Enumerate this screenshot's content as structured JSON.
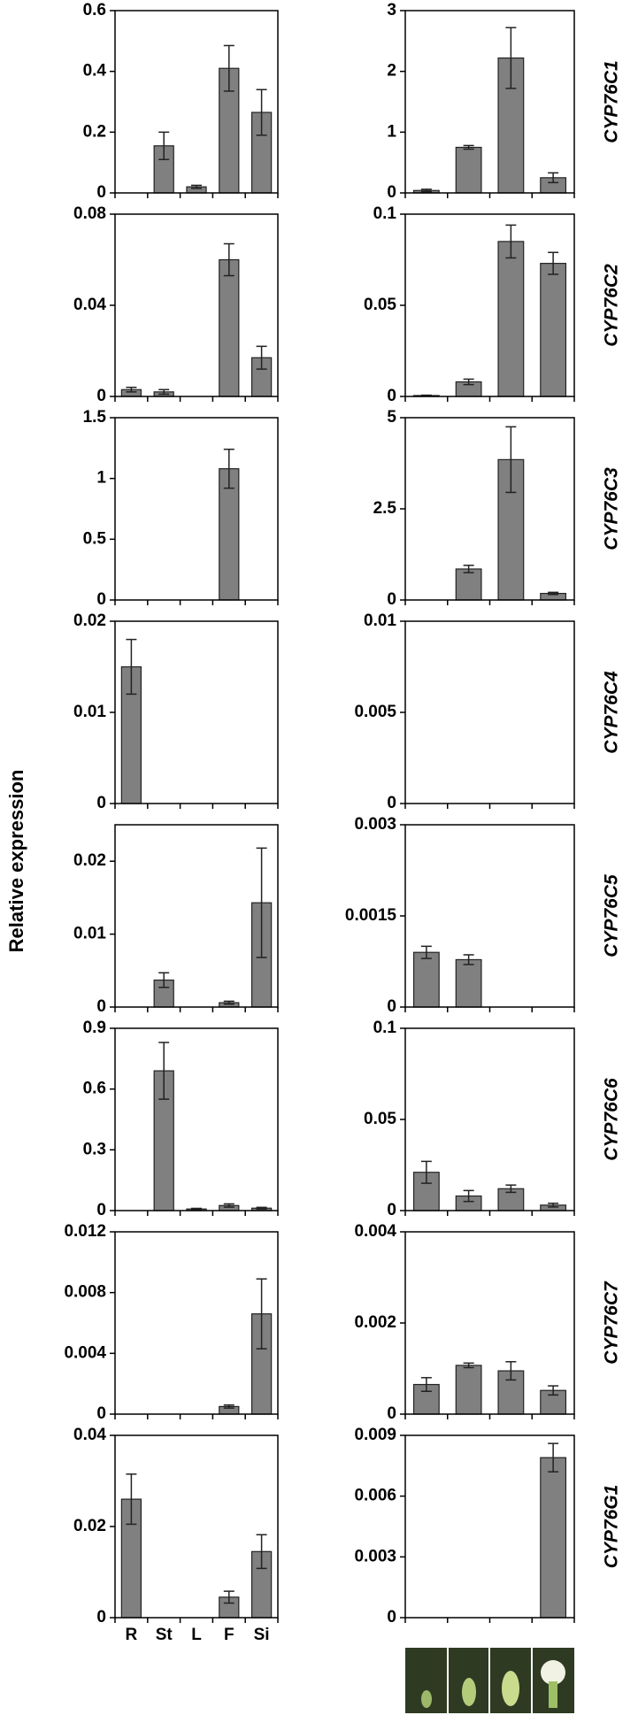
{
  "y_axis_label": "Relative expression",
  "chart_data": [
    {
      "type": "bar",
      "values": [
        0,
        0.155,
        0.02,
        0.41,
        0.265
      ],
      "errors": [
        0,
        0.045,
        0.005,
        0.075,
        0.075
      ],
      "ylim": [
        0,
        0.6
      ],
      "yticks": [
        0,
        0.2,
        0.4,
        0.6
      ],
      "color": "#808080"
    },
    {
      "type": "bar",
      "title": "CYP76C1",
      "values": [
        0.04,
        0.75,
        2.22,
        0.25
      ],
      "errors": [
        0.02,
        0.03,
        0.5,
        0.08
      ],
      "ylim": [
        0,
        3
      ],
      "yticks": [
        0,
        1,
        2,
        3
      ],
      "color": "#808080"
    },
    {
      "type": "bar",
      "values": [
        0.003,
        0.002,
        0,
        0.06,
        0.017
      ],
      "errors": [
        0.001,
        0.001,
        0,
        0.007,
        0.005
      ],
      "ylim": [
        0,
        0.08
      ],
      "yticks": [
        0,
        0.04,
        0.08
      ],
      "color": "#808080"
    },
    {
      "type": "bar",
      "title": "CYP76C2",
      "values": [
        0.0005,
        0.008,
        0.085,
        0.073
      ],
      "errors": [
        0.0002,
        0.0015,
        0.009,
        0.006
      ],
      "ylim": [
        0,
        0.1
      ],
      "yticks": [
        0,
        0.05,
        0.1
      ],
      "color": "#808080"
    },
    {
      "type": "bar",
      "values": [
        0,
        0,
        0,
        1.08,
        0
      ],
      "errors": [
        0,
        0,
        0,
        0.16,
        0
      ],
      "ylim": [
        0,
        1.5
      ],
      "yticks": [
        0,
        0.5,
        1,
        1.5
      ],
      "color": "#808080"
    },
    {
      "type": "bar",
      "title": "CYP76C3",
      "values": [
        0,
        0.85,
        3.85,
        0.18
      ],
      "errors": [
        0,
        0.1,
        0.9,
        0.03
      ],
      "ylim": [
        0,
        5
      ],
      "yticks": [
        0,
        2.5,
        5
      ],
      "color": "#808080"
    },
    {
      "type": "bar",
      "values": [
        0.015,
        0,
        0,
        0,
        0
      ],
      "errors": [
        0.003,
        0,
        0,
        0,
        0
      ],
      "ylim": [
        0,
        0.02
      ],
      "yticks": [
        0,
        0.01,
        0.02
      ],
      "color": "#808080"
    },
    {
      "type": "bar",
      "title": "CYP76C4",
      "values": [
        0,
        0,
        0,
        0
      ],
      "errors": [
        0,
        0,
        0,
        0
      ],
      "ylim": [
        0,
        0.01
      ],
      "yticks": [
        0,
        0.005,
        0.01
      ],
      "color": "#808080"
    },
    {
      "type": "bar",
      "values": [
        0,
        0.0037,
        0,
        0.0006,
        0.0143
      ],
      "errors": [
        0,
        0.001,
        0,
        0.0002,
        0.0075
      ],
      "ylim": [
        0,
        0.025
      ],
      "yticks": [
        0,
        0.01,
        0.02
      ],
      "color": "#808080"
    },
    {
      "type": "bar",
      "title": "CYP76C5",
      "values": [
        0.0009,
        0.00078,
        0,
        0
      ],
      "errors": [
        0.0001,
        8e-05,
        0,
        0
      ],
      "ylim": [
        0,
        0.003
      ],
      "yticks": [
        0,
        0.0015,
        0.003
      ],
      "color": "#808080"
    },
    {
      "type": "bar",
      "values": [
        0,
        0.69,
        0.008,
        0.025,
        0.012
      ],
      "errors": [
        0,
        0.14,
        0.003,
        0.008,
        0.004
      ],
      "ylim": [
        0,
        0.9
      ],
      "yticks": [
        0,
        0.3,
        0.6,
        0.9
      ],
      "color": "#808080"
    },
    {
      "type": "bar",
      "title": "CYP76C6",
      "values": [
        0.021,
        0.008,
        0.012,
        0.003
      ],
      "errors": [
        0.006,
        0.003,
        0.002,
        0.001
      ],
      "ylim": [
        0,
        0.1
      ],
      "yticks": [
        0,
        0.05,
        0.1
      ],
      "color": "#808080"
    },
    {
      "type": "bar",
      "values": [
        0,
        0,
        0,
        0.0005,
        0.0066
      ],
      "errors": [
        0,
        0,
        0,
        0.0001,
        0.0023
      ],
      "ylim": [
        0,
        0.012
      ],
      "yticks": [
        0,
        0.004,
        0.008,
        0.012
      ],
      "color": "#808080"
    },
    {
      "type": "bar",
      "title": "CYP76C7",
      "values": [
        0.00065,
        0.00107,
        0.00095,
        0.00052
      ],
      "errors": [
        0.00015,
        5e-05,
        0.0002,
        0.0001
      ],
      "ylim": [
        0,
        0.004
      ],
      "yticks": [
        0,
        0.002,
        0.004
      ],
      "color": "#808080"
    },
    {
      "type": "bar",
      "categories": [
        "R",
        "St",
        "L",
        "F",
        "Si"
      ],
      "values": [
        0.026,
        0,
        0,
        0.0045,
        0.0145
      ],
      "errors": [
        0.0055,
        0,
        0,
        0.0013,
        0.0037
      ],
      "ylim": [
        0,
        0.04
      ],
      "yticks": [
        0,
        0.02,
        0.04
      ],
      "color": "#808080"
    },
    {
      "type": "bar",
      "title": "CYP76G1",
      "values": [
        0,
        0,
        0,
        0.0079
      ],
      "errors": [
        0,
        0,
        0,
        0.0007
      ],
      "ylim": [
        0,
        0.009
      ],
      "yticks": [
        0,
        0.003,
        0.006,
        0.009
      ],
      "color": "#808080"
    }
  ]
}
